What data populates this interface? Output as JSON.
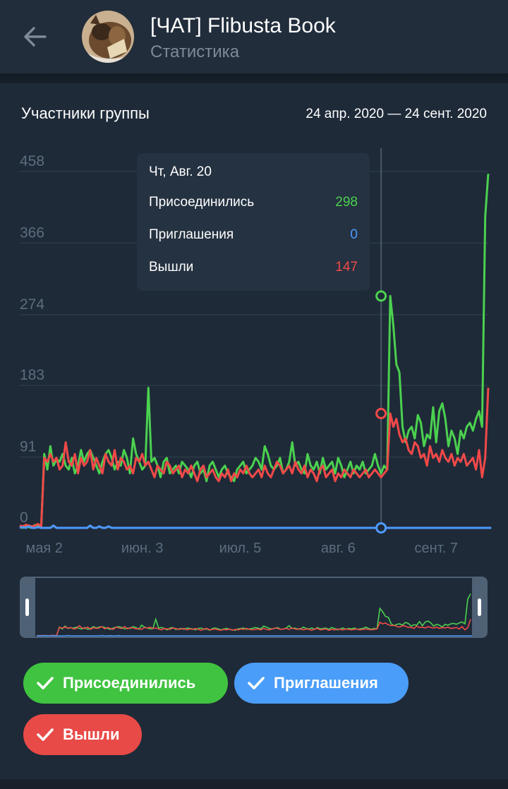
{
  "header": {
    "title": "[ЧАТ] Flibusta Book",
    "subtitle": "Статистика"
  },
  "chart_header": {
    "title": "Участники группы",
    "date_range": "24 апр. 2020 — 24 сент. 2020"
  },
  "tooltip": {
    "date": "Чт, Авг. 20",
    "rows": [
      {
        "label": "Присоединились",
        "value": "298",
        "color": "#4bd14f"
      },
      {
        "label": "Приглашения",
        "value": "0",
        "color": "#4e99ff"
      },
      {
        "label": "Вышли",
        "value": "147",
        "color": "#f24949"
      }
    ]
  },
  "legend": [
    {
      "label": "Присоединились",
      "color": "#40c340"
    },
    {
      "label": "Приглашения",
      "color": "#4a9df8"
    },
    {
      "label": "Вышли",
      "color": "#e84a47"
    }
  ],
  "chart_data": {
    "type": "line",
    "title": "Участники группы",
    "x_start": "2020-04-24",
    "x_end": "2020-09-24",
    "x_tick_labels": [
      "мая 2",
      "июн. 3",
      "июл. 5",
      "авг. 6",
      "сент. 7"
    ],
    "x_tick_dates": [
      "2020-05-02",
      "2020-06-03",
      "2020-07-05",
      "2020-08-06",
      "2020-09-07"
    ],
    "ylim": [
      0,
      458
    ],
    "y_ticks": [
      "0",
      "91",
      "183",
      "274",
      "366",
      "458"
    ],
    "grid": true,
    "selected_date": "2020-08-20",
    "series": [
      {
        "name": "Присоединились",
        "color": "#4bd14f",
        "values": [
          2,
          0,
          3,
          1,
          0,
          4,
          2,
          1,
          95,
          75,
          105,
          80,
          88,
          85,
          95,
          80,
          75,
          90,
          70,
          80,
          100,
          85,
          95,
          100,
          90,
          80,
          70,
          85,
          95,
          100,
          90,
          75,
          85,
          80,
          100,
          90,
          70,
          115,
          95,
          85,
          75,
          80,
          180,
          85,
          90,
          80,
          65,
          85,
          90,
          70,
          75,
          80,
          70,
          85,
          80,
          75,
          65,
          80,
          85,
          70,
          75,
          60,
          80,
          85,
          75,
          65,
          75,
          80,
          70,
          65,
          60,
          75,
          80,
          85,
          70,
          75,
          80,
          90,
          85,
          75,
          105,
          95,
          80,
          75,
          80,
          90,
          70,
          75,
          85,
          110,
          80,
          85,
          75,
          70,
          95,
          80,
          75,
          85,
          70,
          90,
          75,
          80,
          85,
          70,
          90,
          80,
          65,
          75,
          85,
          70,
          80,
          75,
          85,
          70,
          75,
          80,
          95,
          80,
          70,
          80,
          75,
          298,
          260,
          210,
          200,
          130,
          110,
          125,
          130,
          115,
          145,
          135,
          105,
          120,
          115,
          155,
          110,
          150,
          160,
          140,
          105,
          125,
          115,
          95,
          125,
          115,
          130,
          135,
          125,
          140,
          150,
          130,
          400,
          455
        ]
      },
      {
        "name": "Приглашения",
        "color": "#4e99ff",
        "values": [
          0,
          1,
          0,
          2,
          0,
          0,
          1,
          0,
          0,
          0,
          0,
          3,
          0,
          0,
          0,
          0,
          0,
          0,
          0,
          0,
          0,
          0,
          0,
          3,
          0,
          0,
          2,
          0,
          0,
          2,
          0,
          0,
          0,
          0,
          0,
          0,
          0,
          0,
          0,
          0,
          0,
          0,
          0,
          0,
          0,
          0,
          0,
          0,
          0,
          0,
          0,
          0,
          0,
          0,
          0,
          0,
          0,
          0,
          0,
          0,
          0,
          0,
          0,
          0,
          0,
          0,
          0,
          0,
          0,
          0,
          0,
          0,
          0,
          0,
          0,
          0,
          0,
          0,
          0,
          0,
          0,
          0,
          0,
          0,
          0,
          0,
          0,
          0,
          0,
          0,
          0,
          0,
          0,
          0,
          0,
          0,
          0,
          0,
          0,
          0,
          0,
          0,
          0,
          0,
          0,
          0,
          0,
          0,
          0,
          0,
          0,
          0,
          0,
          0,
          0,
          0,
          0,
          0,
          0,
          0,
          0,
          0,
          0,
          0,
          0,
          0,
          0,
          0,
          0,
          0,
          0,
          0,
          0,
          0,
          0,
          0,
          0,
          0,
          0,
          0,
          0,
          0,
          0,
          0,
          0,
          0,
          0,
          0,
          0,
          0,
          0,
          0,
          0,
          0,
          0
        ]
      },
      {
        "name": "Вышли",
        "color": "#f24949",
        "values": [
          3,
          2,
          4,
          3,
          2,
          3,
          5,
          2,
          90,
          85,
          95,
          85,
          90,
          75,
          80,
          110,
          85,
          80,
          95,
          70,
          90,
          80,
          85,
          100,
          75,
          90,
          80,
          70,
          95,
          85,
          80,
          100,
          75,
          90,
          85,
          75,
          80,
          70,
          90,
          85,
          95,
          80,
          85,
          75,
          65,
          80,
          75,
          70,
          85,
          80,
          70,
          75,
          80,
          65,
          75,
          70,
          80,
          70,
          60,
          75,
          80,
          65,
          70,
          75,
          65,
          60,
          70,
          65,
          75,
          60,
          70,
          65,
          75,
          70,
          80,
          70,
          65,
          70,
          75,
          65,
          80,
          70,
          65,
          75,
          85,
          80,
          70,
          75,
          80,
          70,
          85,
          75,
          70,
          80,
          65,
          75,
          70,
          60,
          75,
          80,
          65,
          70,
          75,
          60,
          70,
          65,
          75,
          70,
          65,
          75,
          70,
          65,
          70,
          75,
          65,
          70,
          75,
          70,
          65,
          70,
          75,
          147,
          130,
          140,
          120,
          110,
          115,
          100,
          95,
          110,
          105,
          90,
          95,
          80,
          105,
          90,
          95,
          85,
          100,
          90,
          85,
          95,
          80,
          90,
          85,
          95,
          80,
          85,
          90,
          75,
          100,
          65,
          90,
          180
        ]
      }
    ]
  }
}
